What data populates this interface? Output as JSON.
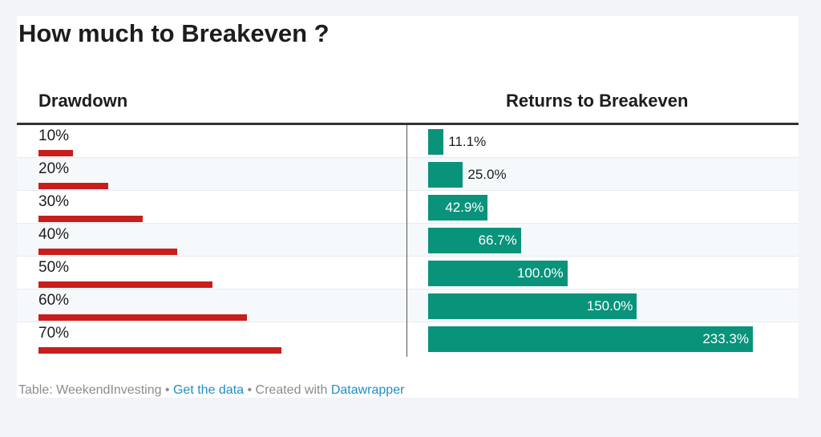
{
  "header": {
    "title": "How much to Breakeven ?"
  },
  "chart_data": {
    "type": "table",
    "title": "How much to Breakeven ?",
    "columns": [
      "Drawdown",
      "Returns to Breakeven"
    ],
    "rows": [
      {
        "drawdown": 10,
        "drawdown_label": "10%",
        "breakeven": 11.1,
        "breakeven_label": "11.1%"
      },
      {
        "drawdown": 20,
        "drawdown_label": "20%",
        "breakeven": 25.0,
        "breakeven_label": "25.0%"
      },
      {
        "drawdown": 30,
        "drawdown_label": "30%",
        "breakeven": 42.9,
        "breakeven_label": "42.9%"
      },
      {
        "drawdown": 40,
        "drawdown_label": "40%",
        "breakeven": 66.7,
        "breakeven_label": "66.7%"
      },
      {
        "drawdown": 50,
        "drawdown_label": "50%",
        "breakeven": 100.0,
        "breakeven_label": "100.0%"
      },
      {
        "drawdown": 60,
        "drawdown_label": "60%",
        "breakeven": 150.0,
        "breakeven_label": "150.0%"
      },
      {
        "drawdown": 70,
        "drawdown_label": "70%",
        "breakeven": 233.3,
        "breakeven_label": "233.3%"
      }
    ],
    "drawdown_bar_max": 100,
    "breakeven_bar_max": 233.3,
    "colors": {
      "drawdown_bar": "#c71e1d",
      "breakeven_bar": "#09937b"
    }
  },
  "footer": {
    "source_label": "Table: WeekendInvesting",
    "separator": " • ",
    "get_data_link": "Get the data",
    "created_with": "Created with",
    "datawrapper_link": "Datawrapper"
  }
}
